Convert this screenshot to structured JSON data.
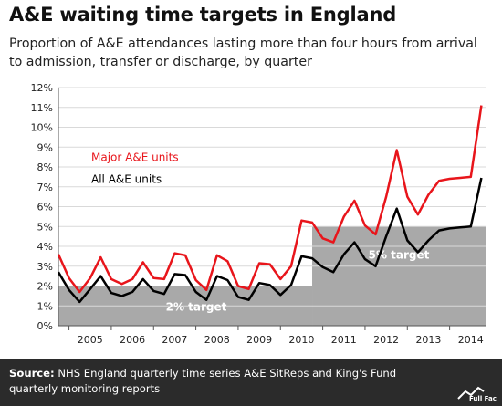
{
  "header": {
    "title": "A&E waiting time targets in England",
    "subtitle": "Proportion of A&E attendances lasting more than four hours from arrival to admission, transfer or discharge, by quarter"
  },
  "footer": {
    "source_label": "Source:",
    "source_text": "NHS England quarterly time series A&E SitReps and King's Fund quarterly monitoring reports",
    "logo_text": "Full Fact"
  },
  "colors": {
    "major": "#e8151b",
    "all": "#000000",
    "target_fill": "#a9a9a9",
    "grid": "#d9d9d9"
  },
  "chart_data": {
    "type": "line",
    "title": "",
    "xlabel": "",
    "ylabel": "",
    "ylim": [
      0,
      12
    ],
    "y_tick_step": 1,
    "y_tick_suffix": "%",
    "grid": true,
    "x_range": [
      2004.25,
      2014.35
    ],
    "x_ticks": [
      2005,
      2006,
      2007,
      2008,
      2009,
      2010,
      2011,
      2012,
      2013,
      2014
    ],
    "series": [
      {
        "name": "Major A&E units",
        "color": "#e8151b",
        "label_position": "upper-left",
        "x": [
          2004.25,
          2004.5,
          2004.75,
          2005.0,
          2005.25,
          2005.5,
          2005.75,
          2006.0,
          2006.25,
          2006.5,
          2006.75,
          2007.0,
          2007.25,
          2007.5,
          2007.75,
          2008.0,
          2008.25,
          2008.5,
          2008.75,
          2009.0,
          2009.25,
          2009.5,
          2009.75,
          2010.0,
          2010.25,
          2010.5,
          2010.75,
          2011.0,
          2011.25,
          2011.5,
          2011.75,
          2012.0,
          2012.25,
          2012.5,
          2012.75,
          2013.0,
          2013.25,
          2013.5,
          2013.75,
          2014.0,
          2014.25
        ],
        "values": [
          3.6,
          2.4,
          1.7,
          2.4,
          3.45,
          2.35,
          2.1,
          2.35,
          3.2,
          2.4,
          2.35,
          3.65,
          3.55,
          2.3,
          1.8,
          3.55,
          3.25,
          2.0,
          1.85,
          3.15,
          3.1,
          2.35,
          3.0,
          5.3,
          5.2,
          4.4,
          4.2,
          5.5,
          6.3,
          5.05,
          4.6,
          6.5,
          8.85,
          6.5,
          5.6,
          6.6,
          7.3,
          7.4,
          7.45,
          7.5,
          11.1
        ]
      },
      {
        "name": "All A&E units",
        "color": "#000000",
        "label_position": "left",
        "x": [
          2004.25,
          2004.5,
          2004.75,
          2005.0,
          2005.25,
          2005.5,
          2005.75,
          2006.0,
          2006.25,
          2006.5,
          2006.75,
          2007.0,
          2007.25,
          2007.5,
          2007.75,
          2008.0,
          2008.25,
          2008.5,
          2008.75,
          2009.0,
          2009.25,
          2009.5,
          2009.75,
          2010.0,
          2010.25,
          2010.5,
          2010.75,
          2011.0,
          2011.25,
          2011.5,
          2011.75,
          2012.0,
          2012.25,
          2012.5,
          2012.75,
          2013.0,
          2013.25,
          2013.5,
          2013.75,
          2014.0,
          2014.25
        ],
        "values": [
          2.7,
          1.8,
          1.2,
          1.85,
          2.5,
          1.65,
          1.5,
          1.7,
          2.35,
          1.75,
          1.6,
          2.6,
          2.55,
          1.7,
          1.3,
          2.5,
          2.3,
          1.45,
          1.3,
          2.15,
          2.05,
          1.55,
          2.05,
          3.5,
          3.4,
          2.95,
          2.7,
          3.6,
          4.2,
          3.35,
          3.0,
          4.5,
          5.9,
          4.3,
          3.7,
          4.3,
          4.8,
          4.9,
          4.95,
          5.0,
          7.45
        ]
      }
    ],
    "targets": [
      {
        "label": "2% target",
        "x_start": 2004.25,
        "x_end": 2010.25,
        "value": 2
      },
      {
        "label": "5% target",
        "x_start": 2010.25,
        "x_end": 2014.35,
        "value": 5
      }
    ]
  }
}
